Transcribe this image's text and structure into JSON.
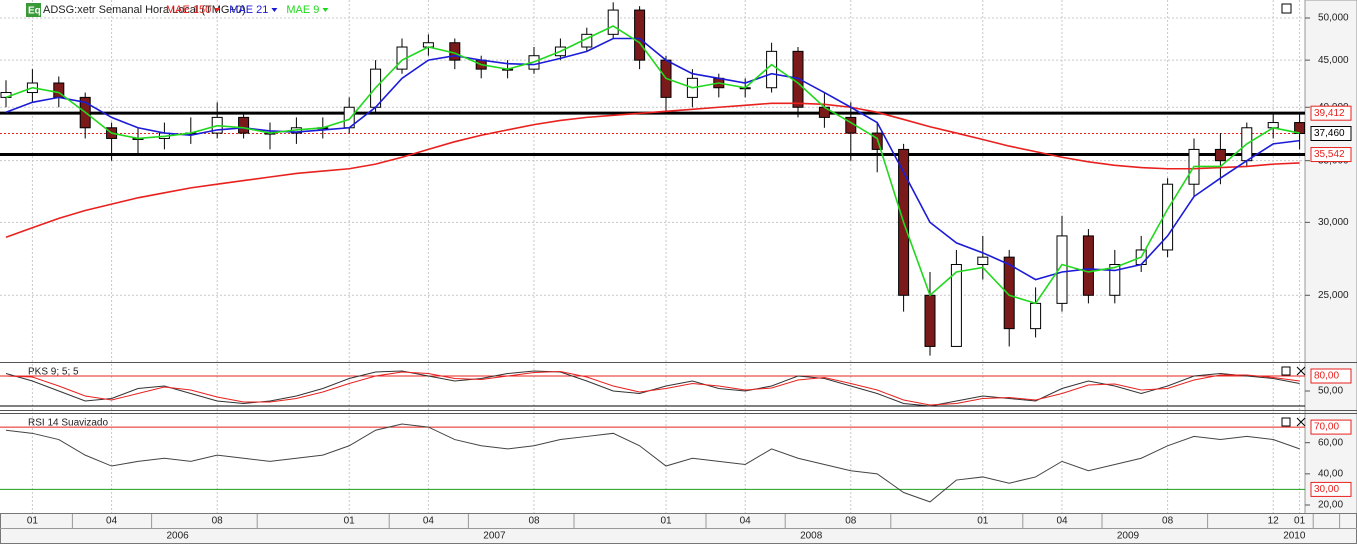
{
  "header": {
    "badge": "Eq",
    "symbol": "ADSG:xetr Semanal Hora Local (TMG+0)"
  },
  "time_axis": {
    "months": [
      {
        "value": 1,
        "label": "01"
      },
      {
        "value": 4,
        "label": "04"
      },
      {
        "value": 8,
        "label": "08"
      },
      {
        "value": 13,
        "label": "01"
      },
      {
        "value": 16,
        "label": "04"
      },
      {
        "value": 20,
        "label": "08"
      },
      {
        "value": 25,
        "label": "01"
      },
      {
        "value": 28,
        "label": "04"
      },
      {
        "value": 32,
        "label": "08"
      },
      {
        "value": 37,
        "label": "01"
      },
      {
        "value": 40,
        "label": "04"
      },
      {
        "value": 44,
        "label": "08"
      },
      {
        "value": 48,
        "label": "12"
      },
      {
        "value": 49,
        "label": "01"
      }
    ],
    "years": [
      {
        "value": 6.5,
        "label": "2006"
      },
      {
        "value": 18.5,
        "label": "2007"
      },
      {
        "value": 30.5,
        "label": "2008"
      },
      {
        "value": 42.5,
        "label": "2009"
      },
      {
        "value": 48.8,
        "label": "2010"
      }
    ]
  },
  "chart_data": [
    {
      "type": "candlestick",
      "log_scale": true,
      "grid": true,
      "up_color": "#ffffff",
      "down_color": "#7b1a1a",
      "ylim": [
        21160,
        52300
      ],
      "yticks": [
        {
          "value": 25000,
          "label": "25,000"
        },
        {
          "value": 30000,
          "label": "30,000"
        },
        {
          "value": 35000,
          "label": "35,000"
        },
        {
          "value": 40000,
          "label": "40,000"
        },
        {
          "value": 45000,
          "label": "45,000"
        },
        {
          "value": 50000,
          "label": "50,000"
        }
      ],
      "open": [
        41000,
        41500,
        42500,
        41000,
        38000,
        37000,
        37000,
        37500,
        37500,
        39000,
        37500,
        37500,
        38000,
        38000,
        40000,
        44000,
        46500,
        47000,
        45000,
        44000,
        44000,
        45500,
        46500,
        48000,
        51000,
        45000,
        41000,
        43000,
        42000,
        42000,
        46000,
        40000,
        39000,
        37500,
        36000,
        25000,
        22000,
        27000,
        27500,
        23000,
        24500,
        29000,
        25000,
        27000,
        28000,
        33000,
        36000,
        35000,
        38000,
        38500
      ],
      "high": [
        42800,
        44000,
        43200,
        41500,
        38500,
        38000,
        38500,
        39000,
        40500,
        39500,
        38500,
        39000,
        39000,
        41000,
        45000,
        47500,
        48000,
        47500,
        45500,
        45000,
        46500,
        47500,
        48800,
        52000,
        51500,
        45500,
        44000,
        43500,
        43000,
        47000,
        46500,
        41500,
        40500,
        38500,
        36500,
        26500,
        28000,
        29000,
        28000,
        25500,
        30500,
        29500,
        28000,
        29000,
        33500,
        37000,
        37500,
        38500,
        39500,
        39500
      ],
      "low": [
        40000,
        40500,
        40000,
        37000,
        35000,
        35500,
        36000,
        36500,
        37000,
        37000,
        36000,
        36500,
        37000,
        37500,
        39500,
        43500,
        45500,
        44000,
        43000,
        43000,
        43500,
        45000,
        46000,
        47500,
        44000,
        39500,
        40000,
        41000,
        41000,
        41500,
        39000,
        38000,
        35000,
        34000,
        24000,
        21500,
        22000,
        26000,
        22000,
        22500,
        24000,
        24500,
        24500,
        26500,
        27500,
        32000,
        33000,
        34500,
        37000,
        36000
      ],
      "close": [
        41500,
        42500,
        41000,
        38000,
        37000,
        37000,
        37500,
        37500,
        39000,
        37500,
        37500,
        38000,
        38000,
        40000,
        44000,
        46500,
        47000,
        45000,
        44000,
        44000,
        45500,
        46500,
        48000,
        51000,
        45000,
        41000,
        43000,
        42000,
        42000,
        46000,
        40000,
        39000,
        37500,
        36000,
        25000,
        22000,
        27000,
        27500,
        23000,
        24500,
        29000,
        25000,
        27000,
        28000,
        33000,
        36000,
        35000,
        38000,
        38500,
        37460
      ],
      "series": [
        {
          "name": "MAE 150",
          "color": "#e8211e",
          "values": [
            28900,
            29600,
            30300,
            30900,
            31400,
            31900,
            32300,
            32700,
            33000,
            33300,
            33600,
            33900,
            34100,
            34300,
            34700,
            35300,
            36000,
            36700,
            37300,
            37800,
            38300,
            38700,
            39000,
            39200,
            39400,
            39600,
            39800,
            40000,
            40200,
            40400,
            40400,
            40300,
            40000,
            39500,
            38800,
            38100,
            37500,
            36900,
            36300,
            35800,
            35300,
            34900,
            34600,
            34400,
            34300,
            34300,
            34400,
            34500,
            34700,
            34800
          ]
        },
        {
          "name": "MAE 21",
          "color": "#1b1bd8",
          "values": [
            39500,
            40500,
            41000,
            40500,
            39000,
            38000,
            37500,
            37300,
            37800,
            38000,
            37700,
            37600,
            37800,
            38000,
            40000,
            43000,
            45000,
            45500,
            45000,
            44600,
            44500,
            45200,
            46000,
            47500,
            47500,
            45000,
            43500,
            43000,
            42500,
            43500,
            43000,
            41500,
            40000,
            38500,
            34000,
            30000,
            28500,
            27800,
            27000,
            26000,
            26500,
            26700,
            26600,
            27000,
            29000,
            32000,
            33500,
            35000,
            36500,
            36800
          ]
        },
        {
          "name": "MAE 9",
          "color": "#22d81e",
          "values": [
            41000,
            42000,
            41500,
            39500,
            37500,
            37000,
            37200,
            37500,
            38200,
            38000,
            37500,
            37800,
            38000,
            38800,
            42000,
            45000,
            46500,
            45800,
            44500,
            44000,
            44800,
            46000,
            47500,
            49000,
            47000,
            43000,
            42000,
            42500,
            42000,
            44500,
            42500,
            40000,
            38500,
            37000,
            30000,
            25000,
            26500,
            26800,
            25000,
            24500,
            27000,
            26500,
            26800,
            27500,
            31000,
            34500,
            34500,
            36500,
            38000,
            37500
          ]
        }
      ],
      "levels": [
        {
          "value": 39412,
          "label": "39,412",
          "color": "#000000",
          "label_color": "#e8211e",
          "style": "solid"
        },
        {
          "value": 37460,
          "label": "37,460",
          "color": "#e8211e",
          "label_color": "#000000",
          "style": "dotted"
        },
        {
          "value": 35542,
          "label": "35,542",
          "color": "#000000",
          "label_color": "#e8211e",
          "style": "solid"
        }
      ]
    },
    {
      "type": "line",
      "title": "PKS 9; 5; 5",
      "ylim": [
        14,
        106
      ],
      "yticks": [
        {
          "value": 50,
          "label": "50,00"
        }
      ],
      "levels": [
        {
          "value": 80,
          "label": "80,00",
          "color": "#e8211e",
          "label_color": "#e8211e"
        },
        {
          "value": 20,
          "color": "#000000"
        }
      ],
      "series": [
        {
          "color": "#333333",
          "values": [
            85,
            70,
            50,
            30,
            35,
            55,
            60,
            45,
            30,
            25,
            30,
            40,
            55,
            75,
            88,
            90,
            80,
            70,
            75,
            85,
            90,
            88,
            70,
            50,
            45,
            60,
            70,
            55,
            50,
            60,
            80,
            75,
            60,
            45,
            25,
            20,
            30,
            40,
            35,
            30,
            55,
            70,
            60,
            45,
            60,
            80,
            85,
            80,
            75,
            65
          ]
        },
        {
          "color": "#e8211e",
          "values": [
            80,
            78,
            60,
            40,
            32,
            45,
            58,
            52,
            38,
            28,
            28,
            35,
            48,
            65,
            80,
            88,
            85,
            75,
            73,
            80,
            87,
            89,
            78,
            60,
            48,
            55,
            65,
            60,
            52,
            56,
            72,
            77,
            65,
            52,
            32,
            22,
            25,
            35,
            37,
            32,
            45,
            62,
            64,
            52,
            55,
            72,
            82,
            82,
            77,
            70
          ]
        }
      ]
    },
    {
      "type": "line",
      "title": "RSI 14 Suavizado",
      "ylim": [
        15.5,
        78.4
      ],
      "yticks": [
        {
          "value": 20,
          "label": "20,00"
        },
        {
          "value": 40,
          "label": "40,00"
        },
        {
          "value": 60,
          "label": "60,00"
        }
      ],
      "levels": [
        {
          "value": 70,
          "label": "70,00",
          "color": "#e8211e",
          "label_color": "#e8211e"
        },
        {
          "value": 30,
          "label": "30,00",
          "color": "#1e9e1e",
          "label_color": "#e8211e"
        }
      ],
      "series": [
        {
          "color": "#444444",
          "values": [
            68,
            66,
            62,
            52,
            45,
            48,
            50,
            48,
            52,
            50,
            48,
            50,
            52,
            58,
            68,
            72,
            70,
            62,
            58,
            56,
            58,
            62,
            64,
            66,
            58,
            45,
            50,
            48,
            46,
            56,
            50,
            46,
            42,
            40,
            28,
            22,
            36,
            38,
            34,
            38,
            48,
            42,
            46,
            50,
            58,
            64,
            62,
            64,
            62,
            56
          ]
        }
      ]
    }
  ]
}
